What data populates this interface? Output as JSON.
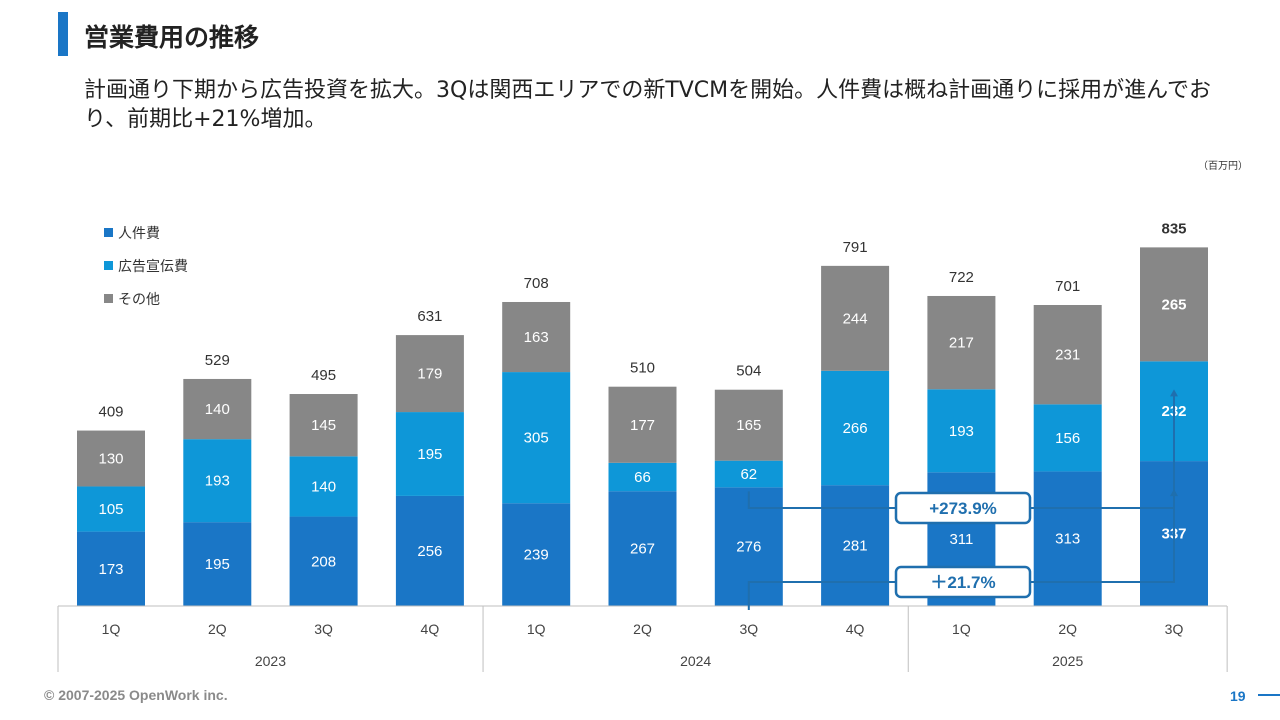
{
  "header": {
    "title": "営業費用の推移",
    "description": "計画通り下期から広告投資を拡大。3Qは関西エリアでの新TVCMを開始。人件費は概ね計画通りに採用が進んでおり、前期比+21%増加。",
    "unit": "（百万円）"
  },
  "footer": {
    "copyright": "© 2007-2025 OpenWork inc.",
    "page_number": "19"
  },
  "colors": {
    "personnel": "#1a76c6",
    "advertising": "#0e97d8",
    "other": "#878787",
    "accent": "#1a76c6",
    "callout_border": "#1f6fae"
  },
  "chart_data": {
    "type": "bar",
    "stacked": true,
    "categories": [
      "1Q",
      "2Q",
      "3Q",
      "4Q",
      "1Q",
      "2Q",
      "3Q",
      "4Q",
      "1Q",
      "2Q",
      "3Q"
    ],
    "groups": [
      {
        "label": "2023",
        "count": 4
      },
      {
        "label": "2024",
        "count": 4
      },
      {
        "label": "2025",
        "count": 3
      }
    ],
    "series": [
      {
        "name": "人件費",
        "key": "personnel",
        "values": [
          173,
          195,
          208,
          256,
          239,
          267,
          276,
          281,
          311,
          313,
          337
        ]
      },
      {
        "name": "広告宣伝費",
        "key": "advertising",
        "values": [
          105,
          193,
          140,
          195,
          305,
          66,
          62,
          266,
          193,
          156,
          232
        ]
      },
      {
        "name": "その他",
        "key": "other",
        "values": [
          130,
          140,
          145,
          179,
          163,
          177,
          165,
          244,
          217,
          231,
          265
        ]
      }
    ],
    "totals": [
      409,
      529,
      495,
      631,
      708,
      510,
      504,
      791,
      722,
      701,
      835
    ],
    "highlight_index": 10,
    "ylim": [
      0,
      900
    ],
    "legend_position": "top-left",
    "annotations": [
      {
        "label": "+273.9%",
        "from_index": 6,
        "to_index": 10,
        "series": "advertising"
      },
      {
        "label": "＋21.7%",
        "from_index": 6,
        "to_index": 10,
        "series": "personnel"
      }
    ]
  }
}
